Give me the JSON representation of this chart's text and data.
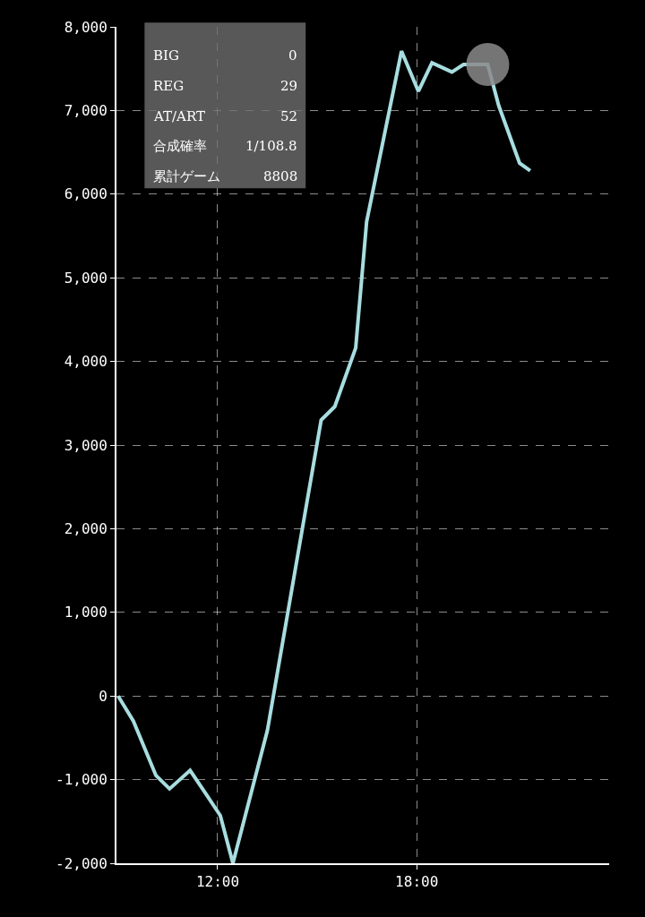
{
  "chart_data": {
    "type": "line",
    "x": [
      9.0,
      9.46,
      10.14,
      10.55,
      11.17,
      11.63,
      12.08,
      12.46,
      13.5,
      15.12,
      15.53,
      16.16,
      16.49,
      17.54,
      18.05,
      18.46,
      19.06,
      19.41,
      20.14,
      20.47,
      21.1,
      21.42
    ],
    "series": [
      {
        "color": "#a8dde0",
        "values": [
          0,
          -300,
          -950,
          -1110,
          -890,
          -1160,
          -1430,
          -2000,
          -410,
          3300,
          3460,
          4160,
          5670,
          7710,
          7230,
          7570,
          7460,
          7550,
          7550,
          7060,
          6370,
          6280
        ]
      },
      {
        "type": "scatter",
        "marker": "circle",
        "color": "#8a8a8a",
        "x": [
          20.14
        ],
        "values": [
          7550
        ]
      }
    ],
    "xlim": [
      8.95,
      23.8
    ],
    "xticks": [
      {
        "value": 12,
        "label": "12:00"
      },
      {
        "value": 18,
        "label": "18:00"
      }
    ],
    "ylim": [
      -2000,
      8000
    ],
    "yticks": [
      {
        "value": -2000,
        "label": "-2,000"
      },
      {
        "value": -1000,
        "label": "-1,000"
      },
      0,
      {
        "value": 1000,
        "label": "1,000"
      },
      {
        "value": 2000,
        "label": "2,000"
      },
      {
        "value": 3000,
        "label": "3,000"
      },
      {
        "value": 4000,
        "label": "4,000"
      },
      {
        "value": 5000,
        "label": "5,000"
      },
      {
        "value": 6000,
        "label": "6,000"
      },
      {
        "value": 7000,
        "label": "7,000"
      },
      {
        "value": 8000,
        "label": "8,000"
      }
    ],
    "grid": true,
    "line_style": "solid",
    "marker": "none",
    "annotations": [
      "BIG 0",
      "REG 29",
      "AT/ART 52",
      "合成確率 1/108.8",
      "累計ゲーム 8808"
    ]
  }
}
